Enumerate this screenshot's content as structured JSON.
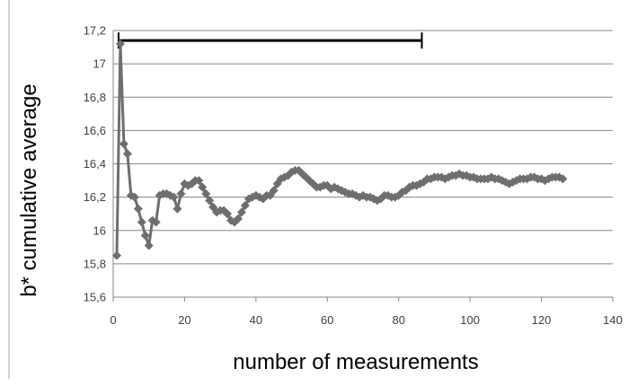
{
  "chart_data": {
    "type": "scatter",
    "title": "",
    "xlabel": "number of measurements",
    "ylabel": "b* cumulative average",
    "xlim": [
      0,
      140
    ],
    "ylim": [
      15.6,
      17.2
    ],
    "x_ticks": [
      0,
      20,
      40,
      60,
      80,
      100,
      120,
      140
    ],
    "x_tick_labels": [
      "0",
      "20",
      "40",
      "60",
      "80",
      "100",
      "120",
      "140"
    ],
    "y_ticks": [
      15.6,
      15.8,
      16.0,
      16.2,
      16.4,
      16.6,
      16.8,
      17.0,
      17.2
    ],
    "y_tick_labels": [
      "15,6",
      "15,8",
      "16",
      "16,2",
      "16,4",
      "16,6",
      "16,8",
      "17",
      "17,2"
    ],
    "grid": "horizontal",
    "legend": "none",
    "marker": "diamond",
    "series_color": "#6e6e6e",
    "bar_annotation": {
      "x_start": 1.5,
      "x_end": 86.5,
      "y": 17.14,
      "color": "#000000"
    },
    "series": [
      {
        "x": [
          1,
          2,
          3,
          4,
          5,
          6,
          7,
          8,
          9,
          10,
          11,
          12,
          13,
          14,
          15,
          16,
          17,
          18,
          19,
          20,
          21,
          22,
          23,
          24,
          25,
          26,
          27,
          28,
          29,
          30,
          31,
          32,
          33,
          34,
          35,
          36,
          37,
          38,
          39,
          40,
          41,
          42,
          43,
          44,
          45,
          46,
          47,
          48,
          49,
          50,
          51,
          52,
          53,
          54,
          55,
          56,
          57,
          58,
          59,
          60,
          61,
          62,
          63,
          64,
          65,
          66,
          67,
          68,
          69,
          70,
          71,
          72,
          73,
          74,
          75,
          76,
          77,
          78,
          79,
          80,
          81,
          82,
          83,
          84,
          85,
          86,
          87,
          88,
          89,
          90,
          91,
          92,
          93,
          94,
          95,
          96,
          97,
          98,
          99,
          100,
          101,
          102,
          103,
          104,
          105,
          106,
          107,
          108,
          109,
          110,
          111,
          112,
          113,
          114,
          115,
          116,
          117,
          118,
          119,
          120,
          121,
          122,
          123,
          124,
          125,
          126
        ],
        "y": [
          15.85,
          17.12,
          16.52,
          16.46,
          16.21,
          16.2,
          16.13,
          16.05,
          15.97,
          15.91,
          16.06,
          16.05,
          16.21,
          16.22,
          16.22,
          16.21,
          16.2,
          16.13,
          16.22,
          16.28,
          16.27,
          16.28,
          16.3,
          16.3,
          16.26,
          16.22,
          16.18,
          16.14,
          16.11,
          16.12,
          16.12,
          16.1,
          16.06,
          16.05,
          16.07,
          16.11,
          16.15,
          16.19,
          16.2,
          16.21,
          16.2,
          16.19,
          16.21,
          16.21,
          16.24,
          16.28,
          16.31,
          16.32,
          16.33,
          16.35,
          16.36,
          16.36,
          16.34,
          16.32,
          16.3,
          16.28,
          16.26,
          16.26,
          16.27,
          16.27,
          16.25,
          16.26,
          16.25,
          16.24,
          16.23,
          16.22,
          16.22,
          16.21,
          16.2,
          16.21,
          16.2,
          16.2,
          16.19,
          16.18,
          16.19,
          16.21,
          16.21,
          16.2,
          16.2,
          16.21,
          16.23,
          16.24,
          16.26,
          16.27,
          16.27,
          16.28,
          16.29,
          16.31,
          16.31,
          16.32,
          16.32,
          16.32,
          16.31,
          16.32,
          16.33,
          16.33,
          16.34,
          16.33,
          16.33,
          16.32,
          16.32,
          16.31,
          16.31,
          16.31,
          16.31,
          16.32,
          16.31,
          16.31,
          16.3,
          16.29,
          16.28,
          16.29,
          16.3,
          16.31,
          16.31,
          16.31,
          16.32,
          16.32,
          16.31,
          16.31,
          16.3,
          16.31,
          16.32,
          16.32,
          16.32,
          16.31
        ]
      }
    ]
  }
}
